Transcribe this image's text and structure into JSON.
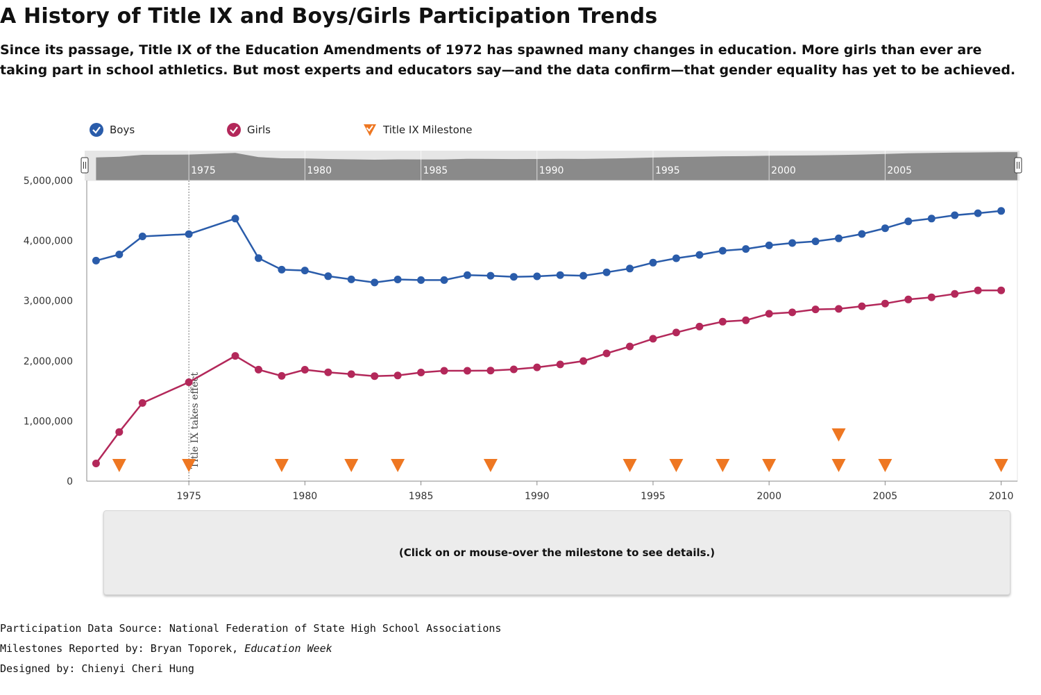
{
  "page": {
    "title": "A History of Title IX and Boys/Girls Participation Trends",
    "subtitle": "Since its passage, Title IX of the Education Amendments of 1972 has spawned many changes in education. More girls than ever are taking part in school athletics. But most experts and educators say—and the data confirm—that gender equality has yet to be achieved."
  },
  "legend": {
    "boys_label": "Boys",
    "girls_label": "Girls",
    "milestone_label": "Title IX Milestone"
  },
  "colors": {
    "boys": "#2a5caa",
    "girls": "#b3285a",
    "milestone": "#ee7722",
    "navigator_fill": "#8a8a8a",
    "navigator_bg": "#e6e6e6"
  },
  "details_panel": {
    "text": "(Click on or mouse-over the milestone to see details.)"
  },
  "credits": {
    "source_line": "Participation Data Source: National Federation of State High School Associations",
    "milestones_prefix": "Milestones Reported by: Bryan Toporek, ",
    "milestones_publication": "Education Week",
    "designer_line": "Designed by: Chienyi Cheri Hung"
  },
  "chart_data": {
    "type": "line",
    "title": "A History of Title IX and Boys/Girls Participation Trends",
    "xlabel": "",
    "ylabel": "",
    "xlim": [
      1970.6,
      2010.7
    ],
    "ylim": [
      0,
      5000000
    ],
    "x_ticks": [
      1975,
      1980,
      1985,
      1990,
      1995,
      2000,
      2005,
      2010
    ],
    "y_ticks": [
      0,
      1000000,
      2000000,
      3000000,
      4000000,
      5000000
    ],
    "y_tick_labels": [
      "0",
      "1,000,000",
      "2,000,000",
      "3,000,000",
      "4,000,000",
      "5,000,000"
    ],
    "legend_position": "top-left",
    "grid": false,
    "series": [
      {
        "name": "Boys",
        "points": [
          [
            1971,
            3666917
          ],
          [
            1972,
            3770621
          ],
          [
            1973,
            4070125
          ],
          [
            1975,
            4109021
          ],
          [
            1977,
            4367442
          ],
          [
            1978,
            3709512
          ],
          [
            1979,
            3517829
          ],
          [
            1980,
            3503124
          ],
          [
            1981,
            3409081
          ],
          [
            1982,
            3355558
          ],
          [
            1983,
            3303599
          ],
          [
            1984,
            3354284
          ],
          [
            1985,
            3344275
          ],
          [
            1986,
            3344275
          ],
          [
            1987,
            3425777
          ],
          [
            1988,
            3416844
          ],
          [
            1989,
            3398192
          ],
          [
            1990,
            3406355
          ],
          [
            1991,
            3426853
          ],
          [
            1992,
            3416389
          ],
          [
            1993,
            3472967
          ],
          [
            1994,
            3536359
          ],
          [
            1995,
            3634052
          ],
          [
            1996,
            3706225
          ],
          [
            1997,
            3763120
          ],
          [
            1998,
            3832352
          ],
          [
            1999,
            3861749
          ],
          [
            2000,
            3921069
          ],
          [
            2001,
            3960517
          ],
          [
            2002,
            3988738
          ],
          [
            2003,
            4038253
          ],
          [
            2004,
            4110319
          ],
          [
            2005,
            4206549
          ],
          [
            2006,
            4321103
          ],
          [
            2007,
            4367442
          ],
          [
            2008,
            4422662
          ],
          [
            2009,
            4455740
          ],
          [
            2010,
            4494406
          ]
        ]
      },
      {
        "name": "Girls",
        "points": [
          [
            1971,
            294015
          ],
          [
            1972,
            817073
          ],
          [
            1973,
            1300169
          ],
          [
            1975,
            1645039
          ],
          [
            1977,
            2083040
          ],
          [
            1978,
            1854400
          ],
          [
            1979,
            1750264
          ],
          [
            1980,
            1853789
          ],
          [
            1981,
            1810671
          ],
          [
            1982,
            1779972
          ],
          [
            1983,
            1747346
          ],
          [
            1984,
            1757884
          ],
          [
            1985,
            1807121
          ],
          [
            1986,
            1836356
          ],
          [
            1987,
            1836356
          ],
          [
            1988,
            1839352
          ],
          [
            1989,
            1858659
          ],
          [
            1990,
            1892316
          ],
          [
            1991,
            1940801
          ],
          [
            1992,
            1997489
          ],
          [
            1993,
            2124755
          ],
          [
            1994,
            2240461
          ],
          [
            1995,
            2367936
          ],
          [
            1996,
            2472043
          ],
          [
            1997,
            2570333
          ],
          [
            1998,
            2652726
          ],
          [
            1999,
            2675874
          ],
          [
            2000,
            2784154
          ],
          [
            2001,
            2806998
          ],
          [
            2002,
            2856358
          ],
          [
            2003,
            2865299
          ],
          [
            2004,
            2908390
          ],
          [
            2005,
            2953355
          ],
          [
            2006,
            3021807
          ],
          [
            2007,
            3057266
          ],
          [
            2008,
            3114091
          ],
          [
            2009,
            3173549
          ],
          [
            2010,
            3172637
          ]
        ]
      }
    ],
    "milestones": [
      {
        "year": 1972,
        "level": 1
      },
      {
        "year": 1975,
        "level": 1
      },
      {
        "year": 1979,
        "level": 1
      },
      {
        "year": 1982,
        "level": 1
      },
      {
        "year": 1984,
        "level": 1
      },
      {
        "year": 1988,
        "level": 1
      },
      {
        "year": 1994,
        "level": 1
      },
      {
        "year": 1996,
        "level": 1
      },
      {
        "year": 1998,
        "level": 1
      },
      {
        "year": 2000,
        "level": 1
      },
      {
        "year": 2003,
        "level": 1
      },
      {
        "year": 2003,
        "level": 2
      },
      {
        "year": 2005,
        "level": 1
      },
      {
        "year": 2010,
        "level": 1
      }
    ],
    "annotations": [
      {
        "x": 1975,
        "text": "Title IX takes effect"
      }
    ],
    "navigator": {
      "labels": [
        "1975",
        "1980",
        "1985",
        "1990",
        "1995",
        "2000",
        "2005"
      ],
      "tick_years": [
        1975,
        1980,
        1985,
        1990,
        1995,
        2000,
        2005
      ],
      "range": [
        1970.6,
        2010.7
      ]
    }
  }
}
